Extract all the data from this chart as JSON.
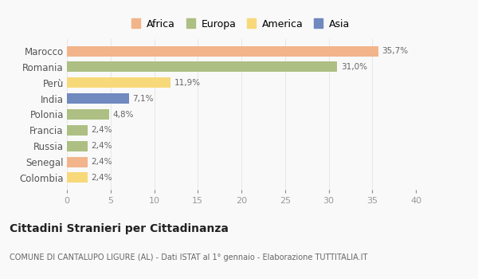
{
  "categories": [
    "Marocco",
    "Romania",
    "Perù",
    "India",
    "Polonia",
    "Francia",
    "Russia",
    "Senegal",
    "Colombia"
  ],
  "values": [
    35.7,
    31.0,
    11.9,
    7.1,
    4.8,
    2.4,
    2.4,
    2.4,
    2.4
  ],
  "labels": [
    "35,7%",
    "31,0%",
    "11,9%",
    "7,1%",
    "4,8%",
    "2,4%",
    "2,4%",
    "2,4%",
    "2,4%"
  ],
  "colors": [
    "#F2B48A",
    "#ADBF82",
    "#F7D97A",
    "#7089BE",
    "#ADBF82",
    "#ADBF82",
    "#ADBF82",
    "#F2B48A",
    "#F7D97A"
  ],
  "legend_labels": [
    "Africa",
    "Europa",
    "America",
    "Asia"
  ],
  "legend_colors": [
    "#F2B48A",
    "#ADBF82",
    "#F7D97A",
    "#7089BE"
  ],
  "title": "Cittadini Stranieri per Cittadinanza",
  "subtitle": "COMUNE DI CANTALUPO LIGURE (AL) - Dati ISTAT al 1° gennaio - Elaborazione TUTTITALIA.IT",
  "xlim": [
    0,
    40
  ],
  "xticks": [
    0,
    5,
    10,
    15,
    20,
    25,
    30,
    35,
    40
  ],
  "bg_color": "#f9f9f9",
  "grid_color": "#e8e8e8",
  "bar_height": 0.65
}
